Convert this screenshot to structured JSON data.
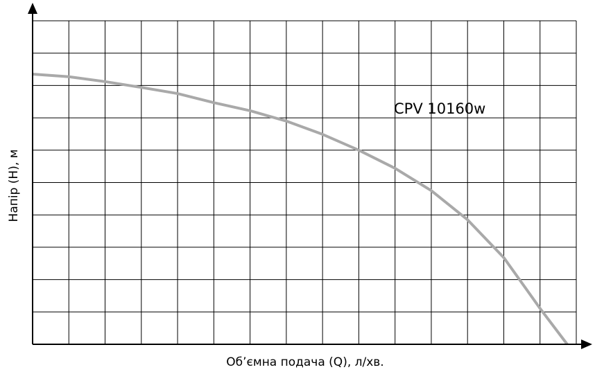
{
  "chart_data": {
    "type": "line",
    "xlabel": "Об’ємна подача (Q), л/хв.",
    "ylabel": "Напір (H), м",
    "annotation": "CPV 10160w",
    "x": [
      0,
      1,
      2,
      3,
      4,
      5,
      6,
      7,
      8,
      9,
      10,
      11,
      12,
      13,
      14,
      14.75
    ],
    "series": [
      {
        "name": "CPV 10160w",
        "color": "#a9a9a9",
        "values": [
          8.35,
          8.27,
          8.12,
          7.94,
          7.75,
          7.47,
          7.22,
          6.9,
          6.49,
          6.0,
          5.44,
          4.75,
          3.85,
          2.68,
          1.11,
          0
        ]
      }
    ],
    "xlim": [
      0,
      15
    ],
    "ylim": [
      0,
      10
    ],
    "xticks": [
      0,
      1,
      2,
      3,
      4,
      5,
      6,
      7,
      8,
      9,
      10,
      11,
      12,
      13,
      14,
      15
    ],
    "yticks": [
      0,
      1,
      2,
      3,
      4,
      5,
      6,
      7,
      8,
      9,
      10
    ],
    "grid": true
  }
}
